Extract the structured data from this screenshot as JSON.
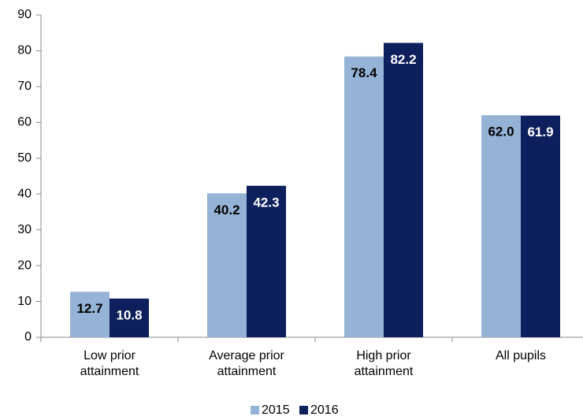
{
  "chart_data": {
    "type": "bar",
    "categories": [
      "Low prior attainment",
      "Average prior attainment",
      "High prior attainment",
      "All pupils"
    ],
    "series": [
      {
        "name": "2015",
        "color": "#95b3d7",
        "values": [
          12.7,
          40.2,
          78.4,
          62.0
        ],
        "value_labels": [
          "12.7",
          "40.2",
          "78.4",
          "62.0"
        ],
        "label_color": "#000000"
      },
      {
        "name": "2016",
        "color": "#0d1f5c",
        "values": [
          10.8,
          42.3,
          82.2,
          61.9
        ],
        "value_labels": [
          "10.8",
          "42.3",
          "82.2",
          "61.9"
        ],
        "label_color": "#ffffff"
      }
    ],
    "ylim": [
      0,
      90
    ],
    "yticks": [
      0,
      10,
      20,
      30,
      40,
      50,
      60,
      70,
      80,
      90
    ],
    "grid": false,
    "legend": "bottom"
  }
}
